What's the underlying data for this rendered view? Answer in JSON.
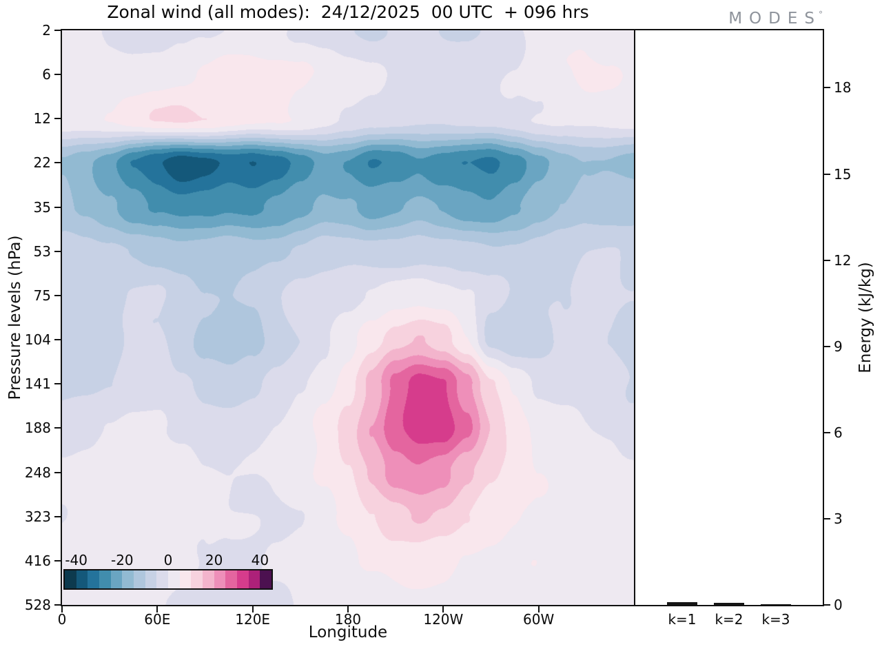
{
  "logo": {
    "text": "MODES",
    "mark": "°"
  },
  "chart_data": [
    {
      "type": "heatmap",
      "title": "Zonal wind (all modes):  24/12/2025  00 UTC  + 096 hrs",
      "xlabel": "Longitude",
      "ylabel": "Pressure levels (hPa)",
      "x_range": [
        0,
        360
      ],
      "x_ticks": [
        {
          "value": 0,
          "label": "0"
        },
        {
          "value": 60,
          "label": "60E"
        },
        {
          "value": 120,
          "label": "120E"
        },
        {
          "value": 180,
          "label": "180"
        },
        {
          "value": 240,
          "label": "120W"
        },
        {
          "value": 300,
          "label": "60W"
        }
      ],
      "y_levels": [
        2,
        6,
        12,
        22,
        35,
        53,
        75,
        104,
        141,
        188,
        248,
        323,
        416,
        528
      ],
      "x": [
        0,
        15,
        30,
        45,
        60,
        75,
        90,
        105,
        120,
        135,
        150,
        165,
        180,
        195,
        210,
        225,
        240,
        255,
        270,
        285,
        300,
        315,
        330,
        345,
        360
      ],
      "values": [
        [
          3,
          1,
          -1,
          -2,
          -2,
          -1,
          0,
          1,
          1,
          0,
          -2,
          -4,
          -5,
          -5,
          -4,
          -4,
          -5,
          -5,
          -4,
          -2,
          1,
          3,
          4,
          4,
          3
        ],
        [
          4,
          4,
          3,
          2,
          2,
          3,
          5,
          7,
          8,
          8,
          7,
          5,
          3,
          1,
          -1,
          -2,
          -2,
          -1,
          0,
          1,
          3,
          5,
          6,
          5,
          4
        ],
        [
          3,
          4,
          6,
          8,
          10,
          11,
          10,
          8,
          7,
          6,
          4,
          2,
          0,
          -2,
          -3,
          -4,
          -4,
          -3,
          -2,
          -1,
          0,
          1,
          2,
          2,
          2
        ],
        [
          -16,
          -20,
          -24,
          -30,
          -34,
          -38,
          -36,
          -34,
          -36,
          -33,
          -28,
          -24,
          -26,
          -30,
          -28,
          -25,
          -28,
          -30,
          -32,
          -28,
          -22,
          -18,
          -16,
          -15,
          -16
        ],
        [
          -13,
          -16,
          -19,
          -23,
          -26,
          -28,
          -27,
          -25,
          -26,
          -24,
          -21,
          -18,
          -19,
          -22,
          -21,
          -19,
          -21,
          -23,
          -24,
          -21,
          -17,
          -14,
          -12,
          -12,
          -13
        ],
        [
          -7,
          -8,
          -9,
          -11,
          -12,
          -13,
          -13,
          -12,
          -12,
          -11,
          -9,
          -7,
          -7,
          -8,
          -8,
          -7,
          -8,
          -9,
          -9,
          -8,
          -7,
          -6,
          -5,
          -5,
          -6
        ],
        [
          -7,
          -8,
          -6,
          -4,
          -4,
          -7,
          -9,
          -10,
          -9,
          -6,
          -3,
          -2,
          -1,
          1,
          3,
          4,
          3,
          1,
          -3,
          -6,
          -7,
          -6,
          -4,
          -4,
          -5
        ],
        [
          -9,
          -10,
          -7,
          -4,
          -4,
          -8,
          -12,
          -14,
          -12,
          -8,
          -4,
          -1,
          3,
          8,
          13,
          15,
          12,
          5,
          -7,
          -8,
          -6,
          -4,
          -3,
          -5,
          -9
        ],
        [
          -6,
          -6,
          -5,
          -3,
          -3,
          -5,
          -7,
          -8,
          -6,
          -3,
          0,
          3,
          8,
          16,
          26,
          32,
          30,
          22,
          11,
          4,
          -1,
          -2,
          -2,
          -3,
          -6
        ],
        [
          -3,
          -2,
          0,
          2,
          2,
          0,
          -2,
          -3,
          -2,
          0,
          2,
          6,
          12,
          20,
          30,
          34,
          33,
          26,
          15,
          8,
          3,
          1,
          0,
          -1,
          -3
        ],
        [
          1,
          2,
          3,
          4,
          4,
          3,
          1,
          0,
          0,
          1,
          3,
          6,
          10,
          16,
          22,
          24,
          22,
          16,
          11,
          7,
          5,
          4,
          3,
          2,
          1
        ],
        [
          1,
          2,
          3,
          4,
          4,
          3,
          1,
          0,
          0,
          0,
          1,
          3,
          6,
          10,
          13,
          15,
          13,
          10,
          7,
          6,
          5,
          5,
          4,
          2,
          1
        ],
        [
          2,
          3,
          3,
          3,
          2,
          1,
          0,
          -1,
          -1,
          0,
          1,
          2,
          4,
          6,
          7,
          8,
          7,
          5,
          4,
          3,
          4,
          4,
          3,
          2,
          2
        ],
        [
          1,
          2,
          2,
          2,
          1,
          0,
          -1,
          -1,
          -1,
          -1,
          0,
          1,
          2,
          3,
          4,
          4,
          4,
          3,
          2,
          2,
          3,
          3,
          2,
          1,
          1
        ]
      ],
      "levels": [
        -45,
        -40,
        -35,
        -30,
        -25,
        -20,
        -15,
        -10,
        -5,
        0,
        5,
        10,
        15,
        20,
        25,
        30,
        35,
        40,
        45
      ],
      "colors": [
        "#0d3a4e",
        "#14587a",
        "#24739b",
        "#418dad",
        "#6aa5c2",
        "#92bad2",
        "#afc6dd",
        "#c7d1e5",
        "#dbdbeb",
        "#eee9f1",
        "#f9e7ed",
        "#f7d2de",
        "#f3b4cc",
        "#ee8fb9",
        "#e4659f",
        "#d63c8c",
        "#ad2179",
        "#4c1150"
      ],
      "colorbar_ticks": [
        -40,
        -20,
        0,
        20,
        40
      ]
    },
    {
      "type": "bar",
      "categories": [
        "k=1",
        "k=2",
        "k=3"
      ],
      "values": [
        0.09,
        0.07,
        0.03
      ],
      "ylabel": "Energy (kJ/kg)",
      "ylim": [
        0,
        20
      ],
      "yticks": [
        0,
        3,
        6,
        9,
        12,
        15,
        18
      ],
      "bar_color": "#151515"
    }
  ]
}
